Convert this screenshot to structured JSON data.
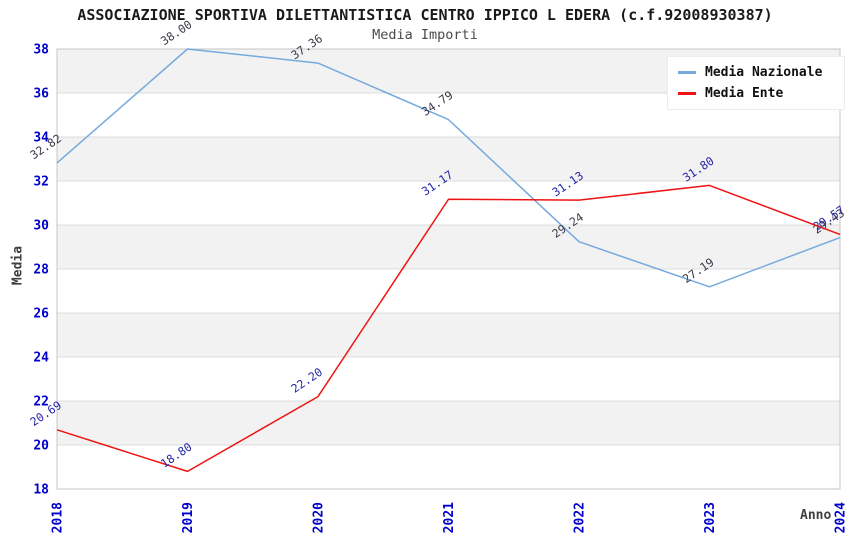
{
  "chart_data": {
    "type": "line",
    "title": "ASSOCIAZIONE SPORTIVA DILETTANTISTICA CENTRO IPPICO L EDERA (c.f.92008930387)",
    "subtitle": "Media Importi",
    "xlabel": "Anno",
    "ylabel": "Media",
    "ylim": [
      18,
      38
    ],
    "ytick_step": 2,
    "grid": "horizontal-bands-alternating",
    "legend_position": "top-right",
    "categories": [
      "2018",
      "2019",
      "2020",
      "2021",
      "2022",
      "2023",
      "2024"
    ],
    "series": [
      {
        "name": "Media Nazionale",
        "color": "#76aade",
        "label_color": "#3a3a4a",
        "values": [
          32.82,
          38.0,
          37.36,
          34.79,
          29.24,
          27.19,
          29.43
        ],
        "point_labels": [
          "32.82",
          "38.00",
          "37.36",
          "34.79",
          "29.24",
          "27.19",
          "29.43"
        ]
      },
      {
        "name": "Media Ente",
        "color": "#ee1414",
        "label_color": "#2626a8",
        "values": [
          20.69,
          18.8,
          22.2,
          31.17,
          31.13,
          31.8,
          29.57
        ],
        "point_labels": [
          "20.69",
          "18.80",
          "22.20",
          "31.17",
          "31.13",
          "31.80",
          "29.57"
        ]
      }
    ],
    "colors": {
      "tick_label": "#0000cc",
      "axis_label": "#404040",
      "band_fill": "#f2f2f2",
      "gridline": "#dcdcdc",
      "plot_border": "#c6c6c6"
    }
  }
}
